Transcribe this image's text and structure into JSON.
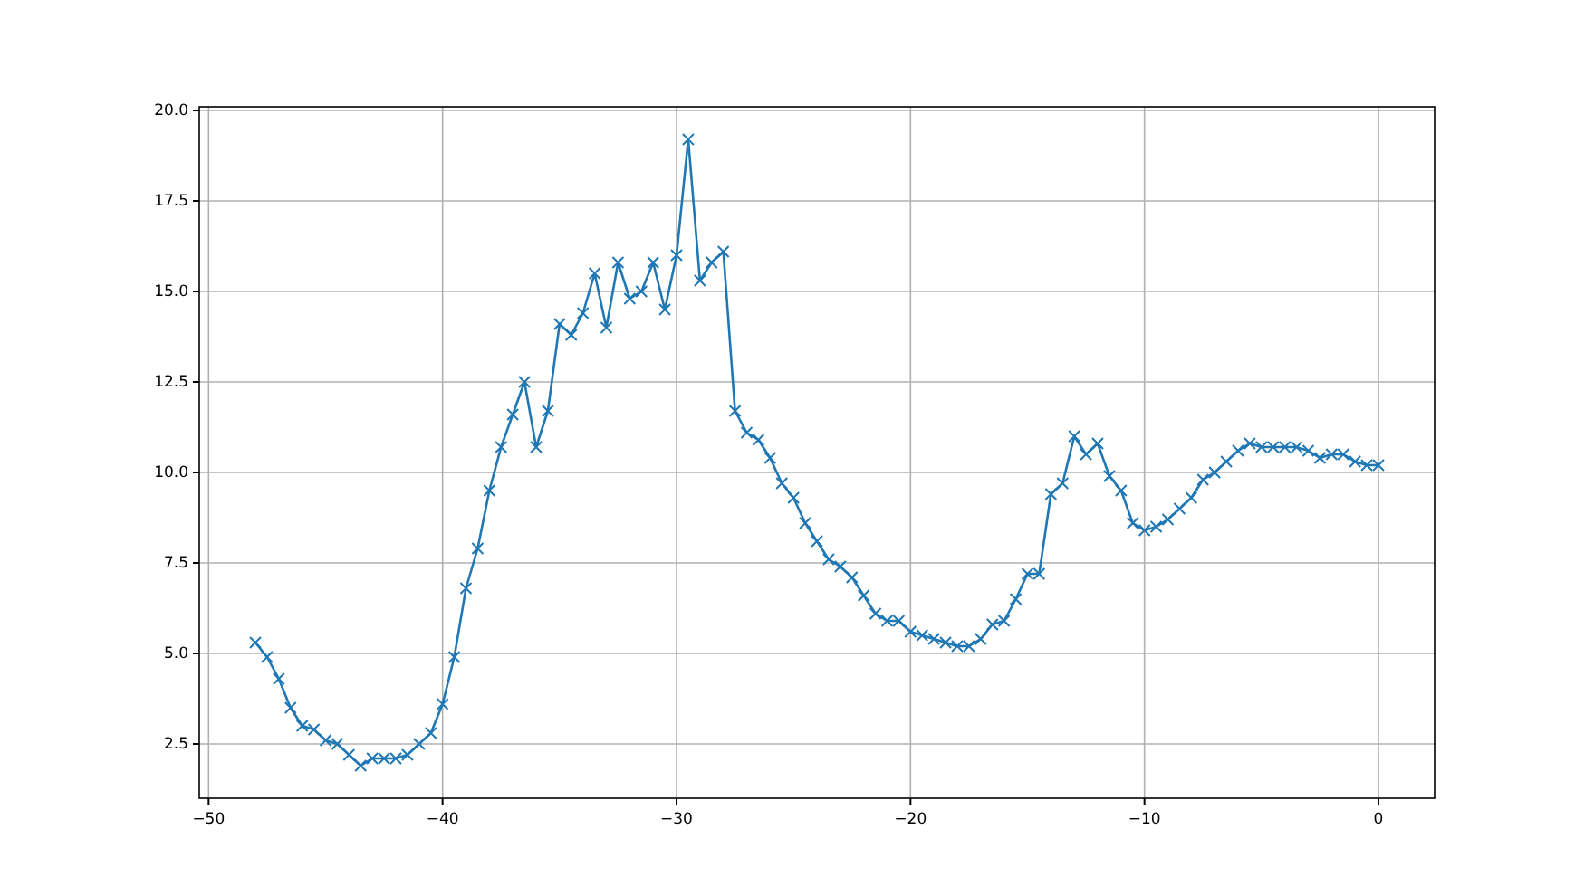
{
  "chart_data": {
    "type": "line",
    "marker": "cross",
    "line_style": "solid",
    "grid": true,
    "x": [
      -48,
      -47.5,
      -47,
      -46.5,
      -46,
      -45.5,
      -45,
      -44.5,
      -44,
      -43.5,
      -43,
      -42.5,
      -42,
      -41.5,
      -41,
      -40.5,
      -40,
      -39.5,
      -39,
      -38.5,
      -38,
      -37.5,
      -37,
      -36.5,
      -36,
      -35.5,
      -35,
      -34.5,
      -34,
      -33.5,
      -33,
      -32.5,
      -32,
      -31.5,
      -31,
      -30.5,
      -30,
      -29.5,
      -29,
      -28.5,
      -28,
      -27.5,
      -27,
      -26.5,
      -26,
      -25.5,
      -25,
      -24.5,
      -24,
      -23.5,
      -23,
      -22.5,
      -22,
      -21.5,
      -21,
      -20.5,
      -20,
      -19.5,
      -19,
      -18.5,
      -18,
      -17.5,
      -17,
      -16.5,
      -16,
      -15.5,
      -15,
      -14.5,
      -14,
      -13.5,
      -13,
      -12.5,
      -12,
      -11.5,
      -11,
      -10.5,
      -10,
      -9.5,
      -9,
      -8.5,
      -8,
      -7.5,
      -7,
      -6.5,
      -6,
      -5.5,
      -5,
      -4.5,
      -4,
      -3.5,
      -3,
      -2.5,
      -2,
      -1.5,
      -1,
      -0.5,
      0
    ],
    "series": [
      {
        "color": "#1f77b4",
        "values": [
          5.3,
          4.9,
          4.3,
          3.5,
          3.0,
          2.9,
          2.6,
          2.5,
          2.2,
          1.9,
          2.1,
          2.1,
          2.1,
          2.2,
          2.5,
          2.8,
          3.6,
          4.9,
          6.8,
          7.9,
          9.5,
          10.7,
          11.6,
          12.5,
          10.7,
          11.7,
          14.1,
          13.8,
          14.4,
          15.5,
          14.0,
          15.8,
          14.8,
          15.0,
          15.8,
          14.5,
          16.0,
          19.2,
          15.3,
          15.8,
          16.1,
          11.7,
          11.1,
          10.9,
          10.4,
          9.7,
          9.3,
          8.6,
          8.1,
          7.6,
          7.4,
          7.1,
          6.6,
          6.1,
          5.9,
          5.9,
          5.6,
          5.5,
          5.4,
          5.3,
          5.2,
          5.2,
          5.4,
          5.8,
          5.9,
          6.5,
          7.2,
          7.2,
          9.4,
          9.7,
          11.0,
          10.5,
          10.8,
          9.9,
          9.5,
          8.6,
          8.4,
          8.5,
          8.7,
          9.0,
          9.3,
          9.8,
          10.0,
          10.3,
          10.6,
          10.8,
          10.7,
          10.7,
          10.7,
          10.7,
          10.6,
          10.4,
          10.5,
          10.5,
          10.3,
          10.2,
          10.2
        ]
      }
    ],
    "xlim": [
      -50.4,
      2.4
    ],
    "xticks": [
      {
        "value": -50,
        "label": "−50"
      },
      {
        "value": -40,
        "label": "−40"
      },
      {
        "value": -30,
        "label": "−30"
      },
      {
        "value": -20,
        "label": "−20"
      },
      {
        "value": -10,
        "label": "−10"
      },
      0
    ],
    "ylim": [
      1.0,
      20.1
    ],
    "yticks": [
      {
        "value": 2.5,
        "label": "2.5"
      },
      {
        "value": 5,
        "label": "5.0"
      },
      {
        "value": 7.5,
        "label": "7.5"
      },
      {
        "value": 10,
        "label": "10.0"
      },
      {
        "value": 12.5,
        "label": "12.5"
      },
      {
        "value": 15,
        "label": "15.0"
      },
      {
        "value": 17.5,
        "label": "17.5"
      },
      {
        "value": 20,
        "label": "20.0"
      }
    ]
  }
}
